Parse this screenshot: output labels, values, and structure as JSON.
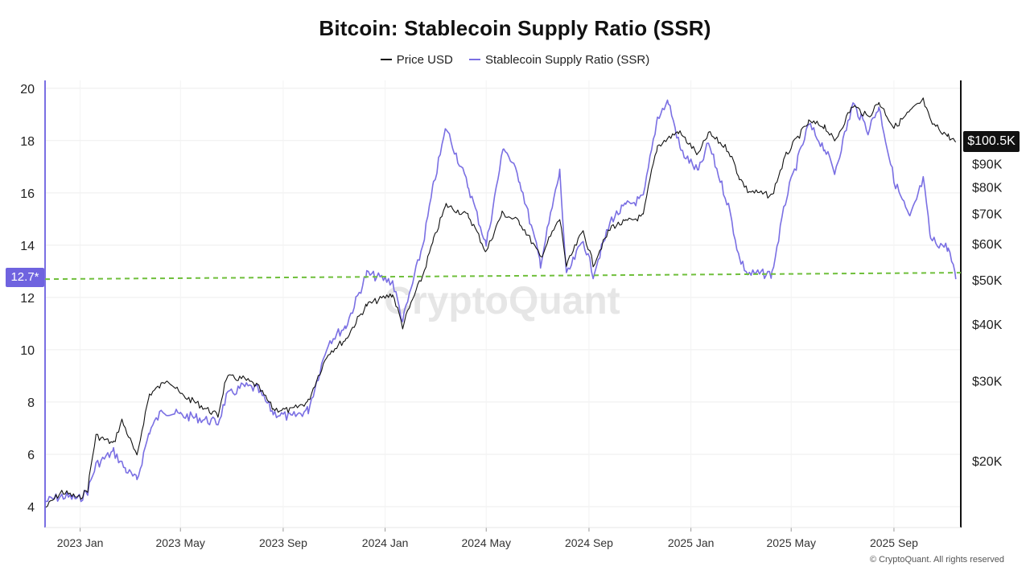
{
  "chart_data": {
    "type": "line",
    "title": "Bitcoin: Stablecoin Supply Ratio (SSR)",
    "legend": [
      {
        "name": "Price USD",
        "color": "#111111"
      },
      {
        "name": "Stablecoin Supply Ratio (SSR)",
        "color": "#7a6fe3"
      }
    ],
    "legend_placement": "top-center",
    "grid": true,
    "x_axis": {
      "ticks": [
        "2023 Jan",
        "2023 May",
        "2023 Sep",
        "2024 Jan",
        "2024 May",
        "2024 Sep",
        "2025 Jan",
        "2025 May",
        "2025 Sep"
      ],
      "range": [
        "2022-11-20",
        "2025-11-20"
      ]
    },
    "y_left": {
      "ticks": [
        4,
        6,
        8,
        10,
        12,
        14,
        16,
        18,
        20
      ],
      "range": [
        3.2,
        20.3
      ]
    },
    "y_right": {
      "scale": "log",
      "ticks": [
        "$20K",
        "$30K",
        "$40K",
        "$50K",
        "$60K",
        "$70K",
        "$80K",
        "$90K"
      ],
      "tick_values": [
        20000,
        30000,
        40000,
        50000,
        60000,
        70000,
        80000,
        90000
      ]
    },
    "reference_line": {
      "value": 12.7,
      "label": "12.7*",
      "color": "#6fbf3b",
      "style": "dashed"
    },
    "last_price_label": "$100.5K",
    "series": [
      {
        "name": "Price USD",
        "axis": "right",
        "color": "#111111",
        "points": [
          [
            "2022-11-21",
            15800
          ],
          [
            "2022-12-10",
            17100
          ],
          [
            "2022-12-31",
            16550
          ],
          [
            "2023-01-10",
            17300
          ],
          [
            "2023-01-20",
            22700
          ],
          [
            "2023-02-10",
            21800
          ],
          [
            "2023-02-20",
            24500
          ],
          [
            "2023-03-10",
            20300
          ],
          [
            "2023-03-25",
            28000
          ],
          [
            "2023-04-10",
            29500
          ],
          [
            "2023-04-15",
            30400
          ],
          [
            "2023-05-01",
            28000
          ],
          [
            "2023-05-20",
            26800
          ],
          [
            "2023-06-15",
            25100
          ],
          [
            "2023-06-25",
            30500
          ],
          [
            "2023-07-15",
            30300
          ],
          [
            "2023-08-01",
            29200
          ],
          [
            "2023-08-20",
            26000
          ],
          [
            "2023-09-10",
            25800
          ],
          [
            "2023-10-01",
            27000
          ],
          [
            "2023-10-25",
            34500
          ],
          [
            "2023-11-15",
            37000
          ],
          [
            "2023-12-10",
            44000
          ],
          [
            "2024-01-10",
            46500
          ],
          [
            "2024-01-22",
            39500
          ],
          [
            "2024-02-15",
            51000
          ],
          [
            "2024-02-28",
            61000
          ],
          [
            "2024-03-14",
            73000
          ],
          [
            "2024-04-10",
            69000
          ],
          [
            "2024-05-01",
            57500
          ],
          [
            "2024-05-20",
            70000
          ],
          [
            "2024-06-10",
            67000
          ],
          [
            "2024-07-05",
            56000
          ],
          [
            "2024-07-28",
            68000
          ],
          [
            "2024-08-05",
            53500
          ],
          [
            "2024-08-25",
            64000
          ],
          [
            "2024-09-06",
            54000
          ],
          [
            "2024-09-28",
            65500
          ],
          [
            "2024-10-15",
            67000
          ],
          [
            "2024-11-05",
            69000
          ],
          [
            "2024-11-22",
            98500
          ],
          [
            "2024-12-17",
            106000
          ],
          [
            "2025-01-10",
            94000
          ],
          [
            "2025-01-22",
            105000
          ],
          [
            "2025-02-15",
            96500
          ],
          [
            "2025-02-28",
            84000
          ],
          [
            "2025-03-10",
            78500
          ],
          [
            "2025-04-08",
            76500
          ],
          [
            "2025-04-25",
            94000
          ],
          [
            "2025-05-22",
            111000
          ],
          [
            "2025-06-10",
            109000
          ],
          [
            "2025-06-22",
            100500
          ],
          [
            "2025-07-14",
            121000
          ],
          [
            "2025-08-01",
            114000
          ],
          [
            "2025-08-14",
            123000
          ],
          [
            "2025-09-01",
            108000
          ],
          [
            "2025-09-20",
            117000
          ],
          [
            "2025-10-06",
            124000
          ],
          [
            "2025-10-15",
            111000
          ],
          [
            "2025-11-05",
            103500
          ],
          [
            "2025-11-14",
            100500
          ]
        ]
      },
      {
        "name": "Stablecoin Supply Ratio (SSR)",
        "axis": "left",
        "color": "#7a6fe3",
        "points": [
          [
            "2022-11-21",
            4.2
          ],
          [
            "2022-12-10",
            4.4
          ],
          [
            "2022-12-31",
            4.3
          ],
          [
            "2023-01-10",
            4.6
          ],
          [
            "2023-01-20",
            5.6
          ],
          [
            "2023-02-10",
            6.1
          ],
          [
            "2023-02-25",
            5.4
          ],
          [
            "2023-03-10",
            5.0
          ],
          [
            "2023-03-25",
            6.9
          ],
          [
            "2023-04-10",
            7.7
          ],
          [
            "2023-04-20",
            7.6
          ],
          [
            "2023-05-01",
            7.5
          ],
          [
            "2023-05-20",
            7.4
          ],
          [
            "2023-06-15",
            7.2
          ],
          [
            "2023-06-25",
            8.2
          ],
          [
            "2023-07-15",
            8.6
          ],
          [
            "2023-08-01",
            8.5
          ],
          [
            "2023-08-20",
            7.6
          ],
          [
            "2023-09-10",
            7.4
          ],
          [
            "2023-10-01",
            7.7
          ],
          [
            "2023-10-25",
            10.3
          ],
          [
            "2023-11-15",
            10.9
          ],
          [
            "2023-12-10",
            12.9
          ],
          [
            "2024-01-10",
            12.6
          ],
          [
            "2024-01-22",
            11.1
          ],
          [
            "2024-02-15",
            14.0
          ],
          [
            "2024-02-28",
            16.3
          ],
          [
            "2024-03-14",
            18.5
          ],
          [
            "2024-04-10",
            16.2
          ],
          [
            "2024-05-01",
            14.0
          ],
          [
            "2024-05-22",
            17.8
          ],
          [
            "2024-06-10",
            16.5
          ],
          [
            "2024-07-05",
            13.3
          ],
          [
            "2024-07-28",
            16.8
          ],
          [
            "2024-08-05",
            12.8
          ],
          [
            "2024-08-25",
            14.2
          ],
          [
            "2024-09-06",
            12.9
          ],
          [
            "2024-09-28",
            15.0
          ],
          [
            "2024-10-15",
            15.5
          ],
          [
            "2024-11-05",
            15.8
          ],
          [
            "2024-11-22",
            18.9
          ],
          [
            "2024-12-05",
            19.5
          ],
          [
            "2024-12-20",
            17.6
          ],
          [
            "2025-01-10",
            16.8
          ],
          [
            "2025-01-22",
            17.9
          ],
          [
            "2025-02-15",
            15.5
          ],
          [
            "2025-02-28",
            13.5
          ],
          [
            "2025-03-10",
            12.9
          ],
          [
            "2025-04-08",
            12.9
          ],
          [
            "2025-04-25",
            15.8
          ],
          [
            "2025-05-22",
            18.6
          ],
          [
            "2025-06-10",
            17.7
          ],
          [
            "2025-06-22",
            16.8
          ],
          [
            "2025-07-14",
            19.4
          ],
          [
            "2025-08-01",
            18.4
          ],
          [
            "2025-08-14",
            19.3
          ],
          [
            "2025-09-01",
            16.5
          ],
          [
            "2025-09-20",
            15.0
          ],
          [
            "2025-10-06",
            16.5
          ],
          [
            "2025-10-15",
            14.2
          ],
          [
            "2025-11-05",
            13.9
          ],
          [
            "2025-11-14",
            12.7
          ]
        ]
      }
    ],
    "watermark": "CryptoQuant",
    "copyright": "© CryptoQuant. All rights reserved"
  }
}
